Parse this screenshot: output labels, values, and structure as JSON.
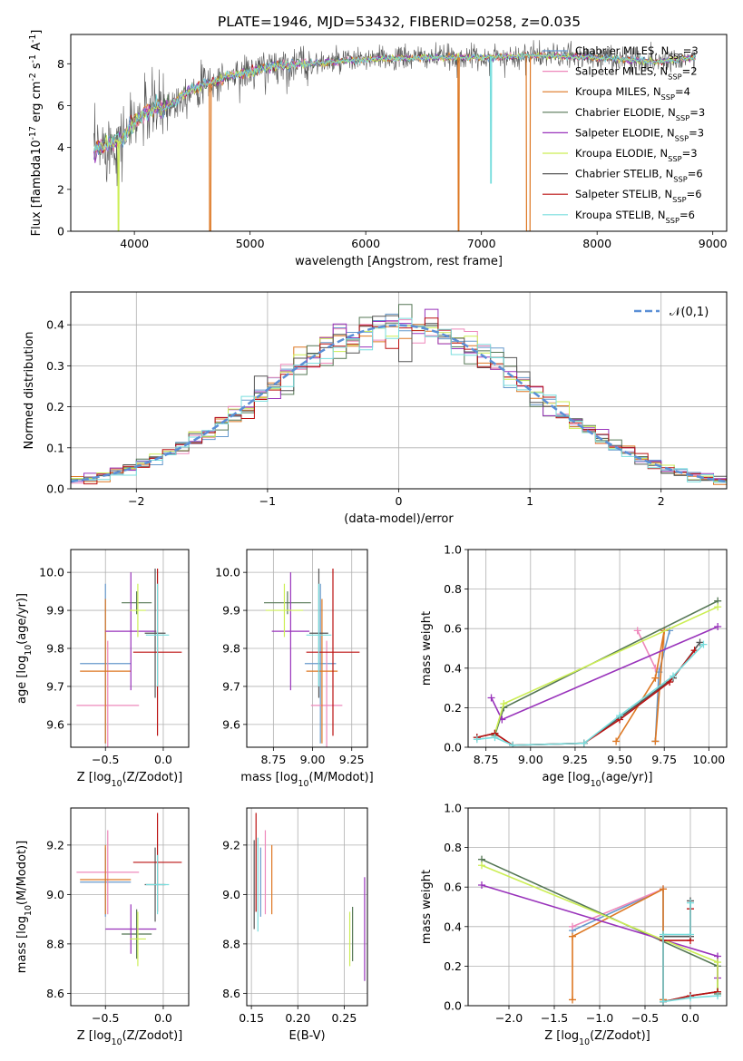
{
  "figure": {
    "suptitle": "PLATE=1946, MJD=53432, FIBERID=0258, z=0.035",
    "colors": {
      "Chabrier MILES": "#6699cc",
      "Salpeter MILES": "#ee88bb",
      "Kroupa MILES": "#dd7722",
      "Chabrier ELODIE": "#557755",
      "Salpeter ELODIE": "#9933bb",
      "Kroupa ELODIE": "#ccee55",
      "Chabrier STELIB": "#555555",
      "Salpeter STELIB": "#bb1111",
      "Kroupa STELIB": "#77dddd"
    }
  },
  "chart_data": [
    {
      "id": "spectrum",
      "type": "line",
      "xlabel": "wavelength [Angstrom, rest frame]",
      "ylabel": "Flux [f$_\\lambda$10$^{-17}$ erg cm$^{-2}$ s$^{-1}$ A$^{-1}$]",
      "xlim": [
        3450,
        9120
      ],
      "ylim": [
        0,
        9.4
      ],
      "xticks": [
        4000,
        5000,
        6000,
        7000,
        8000,
        9000
      ],
      "yticks": [
        0,
        2,
        4,
        6,
        8
      ],
      "legend": {
        "placement": "upper-right",
        "entries": [
          {
            "label": "Chabrier MILES, N$_{SSP}$=3",
            "key": "Chabrier MILES"
          },
          {
            "label": "Salpeter MILES, N$_{SSP}$=2",
            "key": "Salpeter MILES"
          },
          {
            "label": "Kroupa MILES, N$_{SSP}$=4",
            "key": "Kroupa MILES"
          },
          {
            "label": "Chabrier ELODIE, N$_{SSP}$=3",
            "key": "Chabrier ELODIE"
          },
          {
            "label": "Salpeter ELODIE, N$_{SSP}$=3",
            "key": "Salpeter ELODIE"
          },
          {
            "label": "Kroupa ELODIE, N$_{SSP}$=3",
            "key": "Kroupa ELODIE"
          },
          {
            "label": "Chabrier STELIB, N$_{SSP}$=6",
            "key": "Chabrier STELIB"
          },
          {
            "label": "Salpeter STELIB, N$_{SSP}$=6",
            "key": "Salpeter STELIB"
          },
          {
            "label": "Kroupa STELIB, N$_{SSP}$=6",
            "key": "Kroupa STELIB"
          }
        ]
      },
      "data_range": [
        3650,
        8850
      ],
      "continuum": {
        "x": [
          3650,
          3700,
          3800,
          3900,
          4000,
          4100,
          4200,
          4300,
          4400,
          4500,
          4600,
          4700,
          4800,
          5000,
          5200,
          5500,
          6000,
          6500,
          7000,
          7500,
          8000,
          8500,
          8850
        ],
        "y": [
          3.8,
          4.0,
          4.2,
          4.4,
          5.2,
          5.7,
          5.9,
          6.0,
          6.4,
          6.8,
          7.0,
          7.1,
          7.4,
          7.6,
          7.9,
          8.0,
          8.2,
          8.3,
          8.3,
          8.4,
          8.3,
          8.1,
          8.3
        ]
      },
      "dropouts": [
        {
          "model": "Kroupa MILES",
          "x": [
            4650,
            4660
          ],
          "y": 0
        },
        {
          "model": "Kroupa MILES",
          "x": [
            6800,
            6805
          ],
          "y": 0
        },
        {
          "model": "Kroupa MILES",
          "x": [
            7390,
            7420
          ],
          "y": 0
        },
        {
          "model": "Kroupa STELIB",
          "x": [
            7080,
            7085
          ],
          "y": 2.3
        },
        {
          "model": "Kroupa ELODIE",
          "x": [
            3860,
            3865
          ],
          "y": 0
        }
      ]
    },
    {
      "id": "residuals",
      "type": "histogram",
      "xlabel": "(data-model)/error",
      "ylabel": "Normed distribution",
      "xlim": [
        -2.5,
        2.5
      ],
      "ylim": [
        0,
        0.48
      ],
      "xticks": [
        -2,
        -1,
        0,
        1,
        2
      ],
      "yticks": [
        0.0,
        0.1,
        0.2,
        0.3,
        0.4
      ],
      "grid": true,
      "bin_edges": [
        -2.5,
        -2.4,
        -2.3,
        -2.2,
        -2.1,
        -2.0,
        -1.9,
        -1.8,
        -1.7,
        -1.6,
        -1.5,
        -1.4,
        -1.3,
        -1.2,
        -1.1,
        -1.0,
        -0.9,
        -0.8,
        -0.7,
        -0.6,
        -0.5,
        -0.4,
        -0.3,
        -0.2,
        -0.1,
        0.0,
        0.1,
        0.2,
        0.3,
        0.4,
        0.5,
        0.6,
        0.7,
        0.8,
        0.9,
        1.0,
        1.1,
        1.2,
        1.3,
        1.4,
        1.5,
        1.6,
        1.7,
        1.8,
        1.9,
        2.0,
        2.1,
        2.2,
        2.3,
        2.4,
        2.5
      ],
      "gaussian": {
        "label": "$\\mathcal{N}(0,1)$",
        "mean": 0,
        "sigma": 1,
        "style": "dashed",
        "color": "#5b8fd6"
      },
      "legend": {
        "placement": "upper-right"
      }
    },
    {
      "id": "age-metal",
      "type": "errorbar",
      "xlabel": "Z [log$_{10}$($Z/Z_\\odot$)]",
      "ylabel": "age  [log$_{10}$($age/yr$)]",
      "xlim": [
        -0.8,
        0.22
      ],
      "ylim": [
        9.54,
        10.06
      ],
      "xticks": [
        -0.5,
        0.0
      ],
      "yticks": [
        9.6,
        9.7,
        9.8,
        9.9,
        10.0
      ],
      "grid": true,
      "points": [
        {
          "model": "Chabrier MILES",
          "x": -0.5,
          "xerr": 0.22,
          "y": 9.76,
          "yerr": 0.21
        },
        {
          "model": "Salpeter MILES",
          "x": -0.48,
          "xerr": 0.27,
          "y": 9.65,
          "yerr": 0.17
        },
        {
          "model": "Kroupa MILES",
          "x": -0.5,
          "xerr": 0.22,
          "y": 9.74,
          "yerr": 0.19
        },
        {
          "model": "Chabrier ELODIE",
          "x": -0.23,
          "xerr": 0.13,
          "y": 9.92,
          "yerr": 0.03
        },
        {
          "model": "Salpeter ELODIE",
          "x": -0.28,
          "xerr": 0.22,
          "y": 9.845,
          "yerr": 0.155
        },
        {
          "model": "Kroupa ELODIE",
          "x": -0.22,
          "xerr": 0.07,
          "y": 9.9,
          "yerr": 0.07
        },
        {
          "model": "Chabrier STELIB",
          "x": -0.07,
          "xerr": 0.09,
          "y": 9.84,
          "yerr": 0.17
        },
        {
          "model": "Salpeter STELIB",
          "x": -0.05,
          "xerr": 0.21,
          "y": 9.79,
          "yerr": 0.22
        },
        {
          "model": "Kroupa STELIB",
          "x": -0.05,
          "xerr": 0.1,
          "y": 9.835,
          "yerr": 0.135
        }
      ]
    },
    {
      "id": "age-mass",
      "type": "errorbar",
      "xlabel": "mass [log$_{10}$($M/M_\\odot$)]",
      "ylabel": "",
      "xlim": [
        8.58,
        9.35
      ],
      "ylim": [
        9.54,
        10.06
      ],
      "xticks": [
        8.75,
        9.0,
        9.25
      ],
      "yticks": [
        9.6,
        9.7,
        9.8,
        9.9,
        10.0
      ],
      "grid": true,
      "points": [
        {
          "model": "Chabrier MILES",
          "x": 9.05,
          "xerr": 0.1,
          "y": 9.76,
          "yerr": 0.21
        },
        {
          "model": "Salpeter MILES",
          "x": 9.09,
          "xerr": 0.1,
          "y": 9.65,
          "yerr": 0.17
        },
        {
          "model": "Kroupa MILES",
          "x": 9.06,
          "xerr": 0.1,
          "y": 9.74,
          "yerr": 0.19
        },
        {
          "model": "Chabrier ELODIE",
          "x": 8.84,
          "xerr": 0.15,
          "y": 9.92,
          "yerr": 0.03
        },
        {
          "model": "Salpeter ELODIE",
          "x": 8.86,
          "xerr": 0.12,
          "y": 9.845,
          "yerr": 0.155
        },
        {
          "model": "Kroupa ELODIE",
          "x": 8.82,
          "xerr": 0.12,
          "y": 9.9,
          "yerr": 0.07
        },
        {
          "model": "Chabrier STELIB",
          "x": 9.04,
          "xerr": 0.06,
          "y": 9.84,
          "yerr": 0.17
        },
        {
          "model": "Salpeter STELIB",
          "x": 9.13,
          "xerr": 0.17,
          "y": 9.79,
          "yerr": 0.22
        },
        {
          "model": "Kroupa STELIB",
          "x": 9.04,
          "xerr": 0.08,
          "y": 9.835,
          "yerr": 0.135
        }
      ]
    },
    {
      "id": "weight-age",
      "type": "line",
      "xlabel": "age  [log$_{10}$($age/yr$)]",
      "ylabel": "mass weight",
      "xlim": [
        8.65,
        10.1
      ],
      "ylim": [
        0.0,
        1.0
      ],
      "xticks": [
        8.75,
        9.0,
        9.25,
        9.5,
        9.75,
        10.0
      ],
      "yticks": [
        0.0,
        0.2,
        0.4,
        0.6,
        0.8,
        1.0
      ],
      "grid": true,
      "series": [
        {
          "model": "Chabrier MILES",
          "x": [
            9.7,
            9.72,
            9.78
          ],
          "y": [
            0.03,
            0.38,
            0.59
          ]
        },
        {
          "model": "Salpeter MILES",
          "x": [
            9.6,
            9.7
          ],
          "y": [
            0.59,
            0.4
          ]
        },
        {
          "model": "Kroupa MILES",
          "x": [
            9.48,
            9.7,
            9.75,
            9.7
          ],
          "y": [
            0.03,
            0.35,
            0.59,
            0.03
          ]
        },
        {
          "model": "Chabrier ELODIE",
          "x": [
            8.8,
            8.85,
            10.05
          ],
          "y": [
            0.06,
            0.2,
            0.74
          ]
        },
        {
          "model": "Salpeter ELODIE",
          "x": [
            8.78,
            8.84,
            10.05
          ],
          "y": [
            0.25,
            0.14,
            0.61
          ]
        },
        {
          "model": "Kroupa ELODIE",
          "x": [
            8.8,
            8.85,
            10.05
          ],
          "y": [
            0.07,
            0.22,
            0.71
          ]
        },
        {
          "model": "Chabrier STELIB",
          "x": [
            8.7,
            8.8,
            8.9,
            9.3,
            9.5,
            9.8,
            9.95
          ],
          "y": [
            0.05,
            0.07,
            0.01,
            0.02,
            0.15,
            0.35,
            0.53
          ]
        },
        {
          "model": "Salpeter STELIB",
          "x": [
            8.7,
            8.8,
            8.9,
            9.3,
            9.5,
            9.78,
            9.92
          ],
          "y": [
            0.05,
            0.07,
            0.01,
            0.02,
            0.14,
            0.33,
            0.49
          ]
        },
        {
          "model": "Kroupa STELIB",
          "x": [
            8.7,
            8.8,
            8.9,
            9.3,
            9.5,
            9.8,
            9.97
          ],
          "y": [
            0.04,
            0.05,
            0.01,
            0.02,
            0.16,
            0.36,
            0.52
          ]
        }
      ]
    },
    {
      "id": "mass-metal",
      "type": "errorbar",
      "xlabel": "Z [log$_{10}$($Z/Z_\\odot$)]",
      "ylabel": "mass [log$_{10}$($M/M_\\odot$)]",
      "xlim": [
        -0.8,
        0.22
      ],
      "ylim": [
        8.55,
        9.35
      ],
      "xticks": [
        -0.5,
        0.0
      ],
      "yticks": [
        8.6,
        8.8,
        9.0,
        9.2
      ],
      "grid": true,
      "points": [
        {
          "model": "Chabrier MILES",
          "x": -0.5,
          "xerr": 0.22,
          "y": 9.05,
          "yerr": 0.14
        },
        {
          "model": "Salpeter MILES",
          "x": -0.48,
          "xerr": 0.27,
          "y": 9.09,
          "yerr": 0.17
        },
        {
          "model": "Kroupa MILES",
          "x": -0.5,
          "xerr": 0.22,
          "y": 9.06,
          "yerr": 0.14
        },
        {
          "model": "Chabrier ELODIE",
          "x": -0.23,
          "xerr": 0.13,
          "y": 8.84,
          "yerr": 0.1
        },
        {
          "model": "Salpeter ELODIE",
          "x": -0.28,
          "xerr": 0.22,
          "y": 8.86,
          "yerr": 0.1
        },
        {
          "model": "Kroupa ELODIE",
          "x": -0.22,
          "xerr": 0.07,
          "y": 8.82,
          "yerr": 0.11
        },
        {
          "model": "Chabrier STELIB",
          "x": -0.07,
          "xerr": 0.09,
          "y": 9.04,
          "yerr": 0.15
        },
        {
          "model": "Salpeter STELIB",
          "x": -0.05,
          "xerr": 0.21,
          "y": 9.13,
          "yerr": 0.2
        },
        {
          "model": "Kroupa STELIB",
          "x": -0.05,
          "xerr": 0.1,
          "y": 9.04,
          "yerr": 0.12
        }
      ]
    },
    {
      "id": "mass-ebv",
      "type": "errorbar",
      "xlabel": "E(B-V)",
      "ylabel": "",
      "xlim": [
        0.145,
        0.275
      ],
      "ylim": [
        8.55,
        9.35
      ],
      "xticks": [
        0.15,
        0.2,
        0.25
      ],
      "yticks": [
        8.6,
        8.8,
        9.0,
        9.2
      ],
      "grid": true,
      "points": [
        {
          "model": "Chabrier MILES",
          "x": 0.16,
          "y": 9.05,
          "yerr": 0.14
        },
        {
          "model": "Salpeter MILES",
          "x": 0.165,
          "y": 9.09,
          "yerr": 0.17
        },
        {
          "model": "Kroupa MILES",
          "x": 0.172,
          "y": 9.06,
          "yerr": 0.14
        },
        {
          "model": "Chabrier ELODIE",
          "x": 0.259,
          "y": 8.84,
          "yerr": 0.11
        },
        {
          "model": "Salpeter ELODIE",
          "x": 0.272,
          "y": 8.86,
          "yerr": 0.21
        },
        {
          "model": "Kroupa ELODIE",
          "x": 0.256,
          "y": 8.82,
          "yerr": 0.11
        },
        {
          "model": "Chabrier STELIB",
          "x": 0.153,
          "y": 9.04,
          "yerr": 0.18
        },
        {
          "model": "Salpeter STELIB",
          "x": 0.155,
          "y": 9.13,
          "yerr": 0.2
        },
        {
          "model": "Kroupa STELIB",
          "x": 0.157,
          "y": 9.04,
          "yerr": 0.19
        }
      ]
    },
    {
      "id": "weight-metal",
      "type": "line",
      "xlabel": "Z [log$_{10}$($Z/Z_\\odot$)]",
      "ylabel": "mass weight",
      "xlim": [
        -2.45,
        0.4
      ],
      "ylim": [
        0.0,
        1.0
      ],
      "xticks": [
        -2.0,
        -1.5,
        -1.0,
        -0.5,
        0.0
      ],
      "yticks": [
        0.0,
        0.2,
        0.4,
        0.6,
        0.8,
        1.0
      ],
      "grid": true,
      "series": [
        {
          "model": "Chabrier MILES",
          "x": [
            -1.3,
            -0.3,
            -0.3
          ],
          "y": [
            0.38,
            0.59,
            0.03
          ]
        },
        {
          "model": "Salpeter MILES",
          "x": [
            -1.3,
            -0.3
          ],
          "y": [
            0.4,
            0.59
          ]
        },
        {
          "model": "Kroupa MILES",
          "x": [
            -1.3,
            -1.3,
            -0.3,
            -0.3
          ],
          "y": [
            0.03,
            0.35,
            0.59,
            0.03
          ]
        },
        {
          "model": "Chabrier ELODIE",
          "x": [
            -2.3,
            0.3,
            0.3
          ],
          "y": [
            0.74,
            0.2,
            0.06
          ]
        },
        {
          "model": "Salpeter ELODIE",
          "x": [
            -2.3,
            0.3,
            0.3
          ],
          "y": [
            0.61,
            0.25,
            0.14
          ]
        },
        {
          "model": "Kroupa ELODIE",
          "x": [
            -2.3,
            0.3,
            0.3
          ],
          "y": [
            0.71,
            0.22,
            0.07
          ]
        },
        {
          "model": "Chabrier STELIB",
          "x": [
            0.0,
            0.0,
            -0.3,
            -0.3,
            0.0,
            0.3
          ],
          "y": [
            0.53,
            0.35,
            0.35,
            0.02,
            0.05,
            0.07
          ]
        },
        {
          "model": "Salpeter STELIB",
          "x": [
            0.0,
            0.0,
            -0.3,
            -0.3,
            0.0,
            0.3
          ],
          "y": [
            0.49,
            0.33,
            0.33,
            0.02,
            0.05,
            0.07
          ]
        },
        {
          "model": "Kroupa STELIB",
          "x": [
            0.0,
            0.0,
            -0.3,
            -0.3,
            0.0,
            0.3
          ],
          "y": [
            0.52,
            0.36,
            0.36,
            0.02,
            0.04,
            0.05
          ]
        }
      ]
    }
  ]
}
